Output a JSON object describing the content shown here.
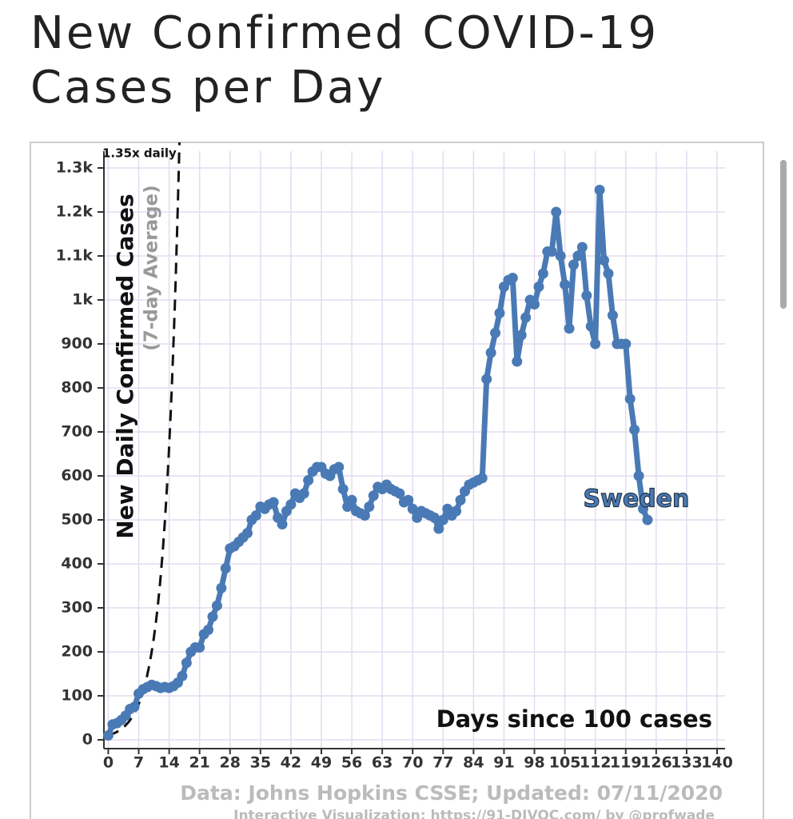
{
  "chart_data": {
    "type": "line",
    "title": "New Confirmed COVID-19 Cases per Day",
    "y_label": "New Daily Confirmed Cases",
    "y_label_sub": "(7-day Average)",
    "x_label": "Days since 100 cases",
    "source": "Data: Johns Hopkins CSSE; Updated: 07/11/2020",
    "credit": "Interactive Visualization: https://91-DIVOC.com/ by @profwade",
    "reference_line": {
      "label": "1.35x daily",
      "rate": 1.35
    },
    "xlim": [
      -1,
      140
    ],
    "ylim": [
      -20,
      1320
    ],
    "xticks": [
      0,
      7,
      14,
      21,
      28,
      35,
      42,
      49,
      56,
      63,
      70,
      77,
      84,
      91,
      98,
      105,
      112,
      119,
      126,
      133,
      140
    ],
    "yticks": [
      0,
      100,
      200,
      300,
      400,
      500,
      600,
      700,
      800,
      900,
      {
        "value": 1000,
        "label": "1k"
      },
      {
        "value": 1100,
        "label": "1.1k"
      },
      {
        "value": 1200,
        "label": "1.2k"
      },
      {
        "value": 1300,
        "label": "1.3k"
      }
    ],
    "grid": true,
    "series": [
      {
        "name": "Sweden",
        "color": "#4a7ab5",
        "values": [
          10,
          35,
          38,
          45,
          55,
          70,
          75,
          105,
          115,
          120,
          125,
          122,
          118,
          120,
          118,
          122,
          130,
          145,
          175,
          200,
          210,
          210,
          240,
          250,
          280,
          305,
          345,
          390,
          435,
          440,
          450,
          460,
          470,
          500,
          510,
          530,
          525,
          535,
          540,
          505,
          490,
          520,
          535,
          560,
          550,
          560,
          590,
          610,
          620,
          620,
          605,
          600,
          615,
          620,
          570,
          530,
          545,
          520,
          515,
          510,
          530,
          555,
          575,
          570,
          580,
          570,
          565,
          560,
          540,
          545,
          525,
          505,
          520,
          515,
          510,
          505,
          480,
          500,
          525,
          510,
          520,
          545,
          565,
          580,
          585,
          590,
          595,
          820,
          880,
          925,
          970,
          1030,
          1045,
          1050,
          860,
          920,
          960,
          1000,
          990,
          1030,
          1060,
          1110,
          1110,
          1200,
          1100,
          1035,
          935,
          1080,
          1100,
          1120,
          1010,
          940,
          900,
          1250,
          1090,
          1060,
          965,
          900,
          900,
          900,
          775,
          705,
          600,
          525,
          500
        ]
      }
    ]
  }
}
